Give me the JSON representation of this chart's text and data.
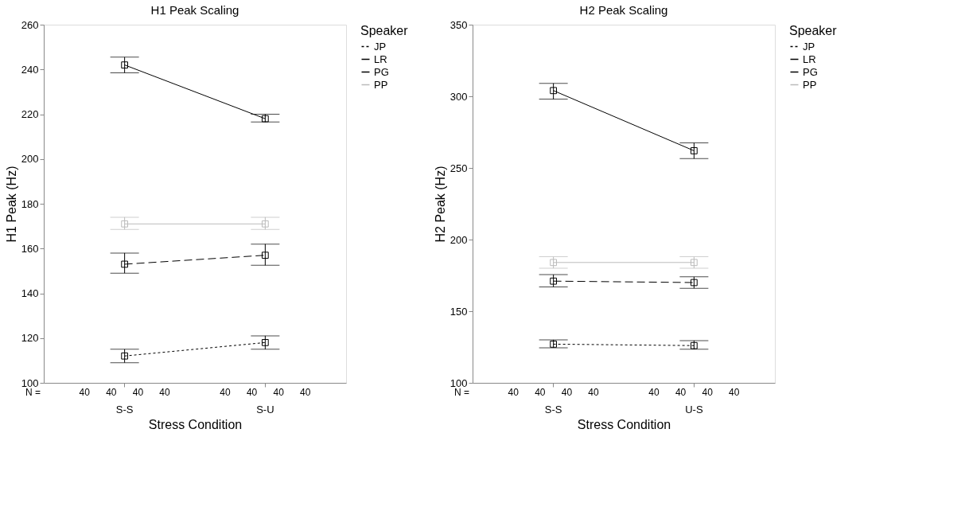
{
  "chart_data": [
    {
      "type": "line",
      "title": "H1 Peak Scaling",
      "xlabel": "Stress Condition",
      "ylabel": "H1 Peak (Hz)",
      "legend_title": "Speaker",
      "legend": "right",
      "marker": "square",
      "grid": false,
      "categories": [
        "S-S",
        "S-U"
      ],
      "ylim": [
        100,
        260
      ],
      "yticks": [
        100,
        120,
        140,
        160,
        180,
        200,
        220,
        240,
        260
      ],
      "series": [
        {
          "name": "JP",
          "color": "#000000",
          "line_style": "dotted",
          "values": [
            112,
            118
          ],
          "errors": [
            [
              109,
              115
            ],
            [
              115,
              121
            ]
          ]
        },
        {
          "name": "LR",
          "color": "#000000",
          "line_style": "solid",
          "values": [
            242,
            218
          ],
          "errors": [
            [
              238.5,
              245.5
            ],
            [
              216.5,
              220
            ]
          ]
        },
        {
          "name": "PG",
          "color": "#000000",
          "line_style": "dashed",
          "values": [
            153,
            157
          ],
          "errors": [
            [
              149,
              158
            ],
            [
              152.5,
              162
            ]
          ]
        },
        {
          "name": "PP",
          "color": "#bbbbbb",
          "line_style": "solid",
          "values": [
            171,
            171
          ],
          "errors": [
            [
              168.5,
              174
            ],
            [
              168.5,
              174
            ]
          ]
        }
      ],
      "annotations": [
        "N =",
        "40",
        "40",
        "40",
        "40",
        "40",
        "40",
        "40",
        "40"
      ]
    },
    {
      "type": "line",
      "title": "H2 Peak Scaling",
      "xlabel": "Stress Condition",
      "ylabel": "H2 Peak (Hz)",
      "legend_title": "Speaker",
      "legend": "right",
      "marker": "square",
      "grid": false,
      "categories": [
        "S-S",
        "U-S"
      ],
      "ylim": [
        100,
        350
      ],
      "yticks": [
        100,
        150,
        200,
        250,
        300,
        350
      ],
      "series": [
        {
          "name": "JP",
          "color": "#000000",
          "line_style": "dotted",
          "values": [
            127,
            126
          ],
          "errors": [
            [
              124.5,
              130
            ],
            [
              123.5,
              129.5
            ]
          ]
        },
        {
          "name": "LR",
          "color": "#000000",
          "line_style": "solid",
          "values": [
            304,
            262
          ],
          "errors": [
            [
              298,
              309
            ],
            [
              256.5,
              267.5
            ]
          ]
        },
        {
          "name": "PG",
          "color": "#000000",
          "line_style": "dashed",
          "values": [
            171,
            170
          ],
          "errors": [
            [
              167,
              175.5
            ],
            [
              166,
              174
            ]
          ]
        },
        {
          "name": "PP",
          "color": "#bbbbbb",
          "line_style": "solid",
          "values": [
            184,
            184
          ],
          "errors": [
            [
              180,
              188
            ],
            [
              180,
              188
            ]
          ]
        }
      ],
      "annotations": [
        "N =",
        "40",
        "40",
        "40",
        "40",
        "40",
        "40",
        "40",
        "40"
      ]
    }
  ]
}
